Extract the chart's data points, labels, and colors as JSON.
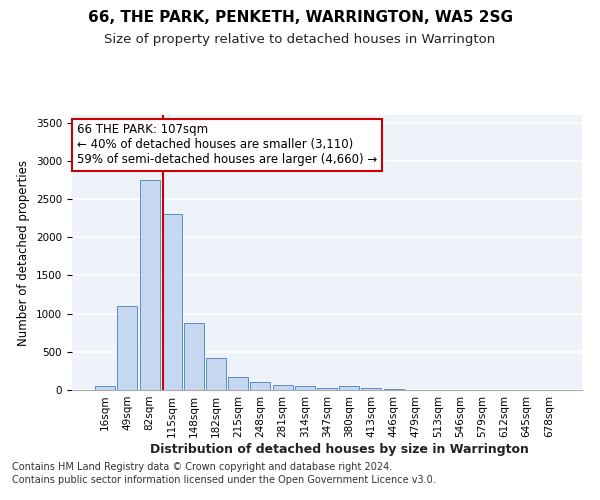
{
  "title": "66, THE PARK, PENKETH, WARRINGTON, WA5 2SG",
  "subtitle": "Size of property relative to detached houses in Warrington",
  "xlabel": "Distribution of detached houses by size in Warrington",
  "ylabel": "Number of detached properties",
  "categories": [
    "16sqm",
    "49sqm",
    "82sqm",
    "115sqm",
    "148sqm",
    "182sqm",
    "215sqm",
    "248sqm",
    "281sqm",
    "314sqm",
    "347sqm",
    "380sqm",
    "413sqm",
    "446sqm",
    "479sqm",
    "513sqm",
    "546sqm",
    "579sqm",
    "612sqm",
    "645sqm",
    "678sqm"
  ],
  "values": [
    50,
    1100,
    2750,
    2300,
    875,
    425,
    175,
    100,
    70,
    50,
    30,
    50,
    30,
    10,
    5,
    3,
    2,
    1,
    1,
    1,
    0
  ],
  "bar_color": "#c5d8f0",
  "bar_edge_color": "#5b8ec5",
  "background_color": "#eef2f9",
  "grid_color": "#ffffff",
  "annotation_text_line1": "66 THE PARK: 107sqm",
  "annotation_text_line2": "← 40% of detached houses are smaller (3,110)",
  "annotation_text_line3": "59% of semi-detached houses are larger (4,660) →",
  "annotation_box_facecolor": "#ffffff",
  "annotation_box_edgecolor": "#cc0000",
  "vline_color": "#cc0000",
  "vline_index": 3,
  "ylim": [
    0,
    3600
  ],
  "yticks": [
    0,
    500,
    1000,
    1500,
    2000,
    2500,
    3000,
    3500
  ],
  "footnote1": "Contains HM Land Registry data © Crown copyright and database right 2024.",
  "footnote2": "Contains public sector information licensed under the Open Government Licence v3.0.",
  "title_fontsize": 11,
  "subtitle_fontsize": 9.5,
  "xlabel_fontsize": 9,
  "ylabel_fontsize": 8.5,
  "tick_fontsize": 7.5,
  "annotation_fontsize": 8.5,
  "footnote_fontsize": 7
}
